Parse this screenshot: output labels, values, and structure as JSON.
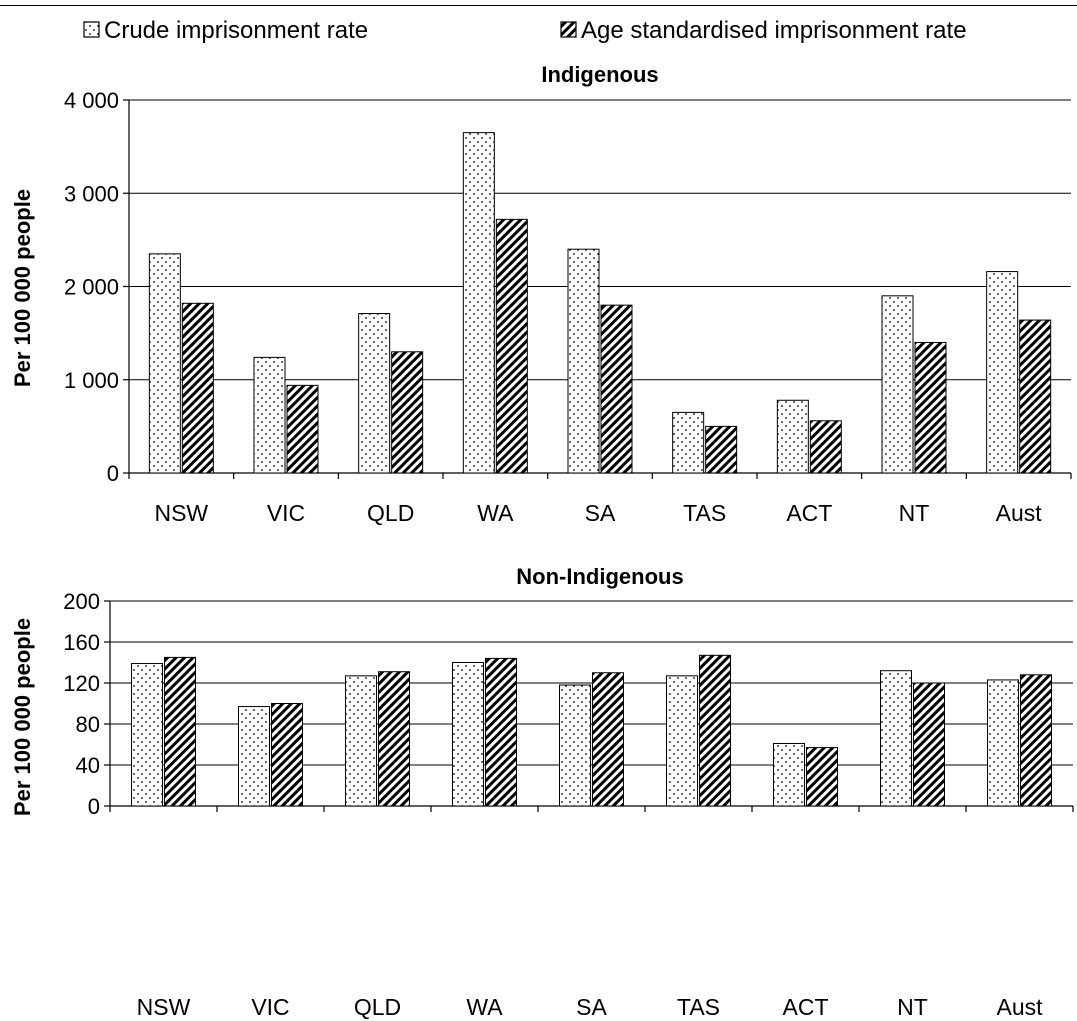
{
  "legend": {
    "crude_label": "Crude imprisonment rate",
    "age_label": "Age standardised imprisonment rate"
  },
  "chart_data": [
    {
      "type": "bar",
      "title": "Indigenous",
      "ylabel": "Per 100 000 people",
      "xlabel": "",
      "categories": [
        "NSW",
        "VIC",
        "QLD",
        "WA",
        "SA",
        "TAS",
        "ACT",
        "NT",
        "Aust"
      ],
      "ylim": [
        0,
        4000
      ],
      "yticks": [
        0,
        1000,
        2000,
        3000,
        4000
      ],
      "ytick_labels": [
        "0",
        "1 000",
        "2 000",
        "3 000",
        "4 000"
      ],
      "grid": true,
      "series": [
        {
          "name": "Crude imprisonment rate",
          "pattern": "dots",
          "values": [
            2350,
            1240,
            1710,
            3650,
            2400,
            650,
            780,
            1900,
            2160
          ]
        },
        {
          "name": "Age standardised imprisonment rate",
          "pattern": "diagonal-hatch",
          "values": [
            1820,
            940,
            1300,
            2720,
            1800,
            500,
            560,
            1400,
            1640
          ]
        }
      ]
    },
    {
      "type": "bar",
      "title": "Non-Indigenous",
      "ylabel": "Per 100 000 people",
      "xlabel": "",
      "categories": [
        "NSW",
        "VIC",
        "QLD",
        "WA",
        "SA",
        "TAS",
        "ACT",
        "NT",
        "Aust"
      ],
      "ylim": [
        0,
        200
      ],
      "yticks": [
        0,
        40,
        80,
        120,
        160,
        200
      ],
      "ytick_labels": [
        "0",
        "40",
        "80",
        "120",
        "160",
        "200"
      ],
      "grid": true,
      "series": [
        {
          "name": "Crude imprisonment rate",
          "pattern": "dots",
          "values": [
            139,
            97,
            127,
            140,
            118,
            127,
            61,
            132,
            123
          ]
        },
        {
          "name": "Age standardised imprisonment rate",
          "pattern": "diagonal-hatch",
          "values": [
            145,
            100,
            131,
            144,
            130,
            147,
            57,
            120,
            128
          ]
        }
      ]
    }
  ]
}
